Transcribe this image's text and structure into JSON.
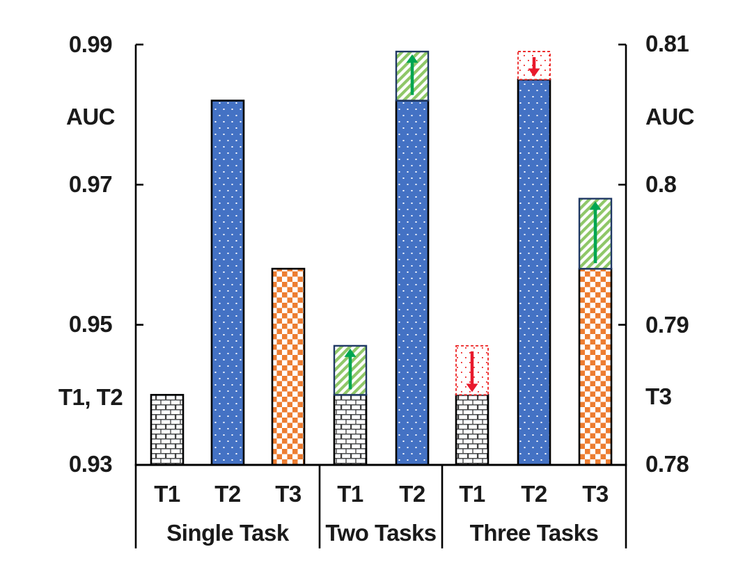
{
  "chart_data": {
    "type": "bar",
    "title": "",
    "dual_axis": true,
    "grid": false,
    "legend_position": "none",
    "left_axis": {
      "title": "AUC",
      "series_label": "T1, T2",
      "min": 0.93,
      "max": 0.99,
      "ticks": [
        {
          "value": 0.99,
          "label": "0.99"
        },
        {
          "value": 0.97,
          "label": "0.97"
        },
        {
          "value": 0.95,
          "label": "0.95"
        },
        {
          "value": 0.93,
          "label": "0.93"
        }
      ]
    },
    "right_axis": {
      "title": "AUC",
      "series_label": "T3",
      "min": 0.78,
      "max": 0.81,
      "ticks": [
        {
          "value": 0.81,
          "label": "0.81"
        },
        {
          "value": 0.8,
          "label": "0.8"
        },
        {
          "value": 0.79,
          "label": "0.79"
        },
        {
          "value": 0.78,
          "label": "0.78"
        }
      ]
    },
    "groups": [
      {
        "label": "Single Task",
        "bars": [
          {
            "task": "T1",
            "axis": "left",
            "pattern": "brick",
            "value": 0.94
          },
          {
            "task": "T2",
            "axis": "left",
            "pattern": "blue-dots",
            "value": 0.982
          },
          {
            "task": "T3",
            "axis": "right",
            "pattern": "orange-checker",
            "value": 0.794
          }
        ]
      },
      {
        "label": "Two Tasks",
        "bars": [
          {
            "task": "T1",
            "axis": "left",
            "pattern": "brick",
            "value": 0.94,
            "delta": {
              "direction": "up",
              "to": 0.947
            }
          },
          {
            "task": "T2",
            "axis": "left",
            "pattern": "blue-dots",
            "value": 0.982,
            "delta": {
              "direction": "up",
              "to": 0.989
            }
          }
        ]
      },
      {
        "label": "Three Tasks",
        "bars": [
          {
            "task": "T1",
            "axis": "left",
            "pattern": "brick",
            "value": 0.94,
            "delta": {
              "direction": "down",
              "from": 0.947
            }
          },
          {
            "task": "T2",
            "axis": "left",
            "pattern": "blue-dots",
            "value": 0.985,
            "delta": {
              "direction": "down",
              "from": 0.989
            }
          },
          {
            "task": "T3",
            "axis": "right",
            "pattern": "orange-checker",
            "value": 0.794,
            "delta": {
              "direction": "up",
              "to": 0.799
            }
          }
        ]
      }
    ],
    "colors": {
      "blue": "#4472c4",
      "orange": "#ed7d31",
      "brick_line": "#3f3f3f",
      "brick_bevel": "#ccd2d8",
      "green_stripe": "#8fc768",
      "green_arrow": "#00a651",
      "green_cap_border": "#1f3864",
      "red": "#ec2020",
      "red_arrow": "#e8192c",
      "bar_border": "#000000",
      "axis": "#000000",
      "text": "#1a1a1a"
    }
  }
}
